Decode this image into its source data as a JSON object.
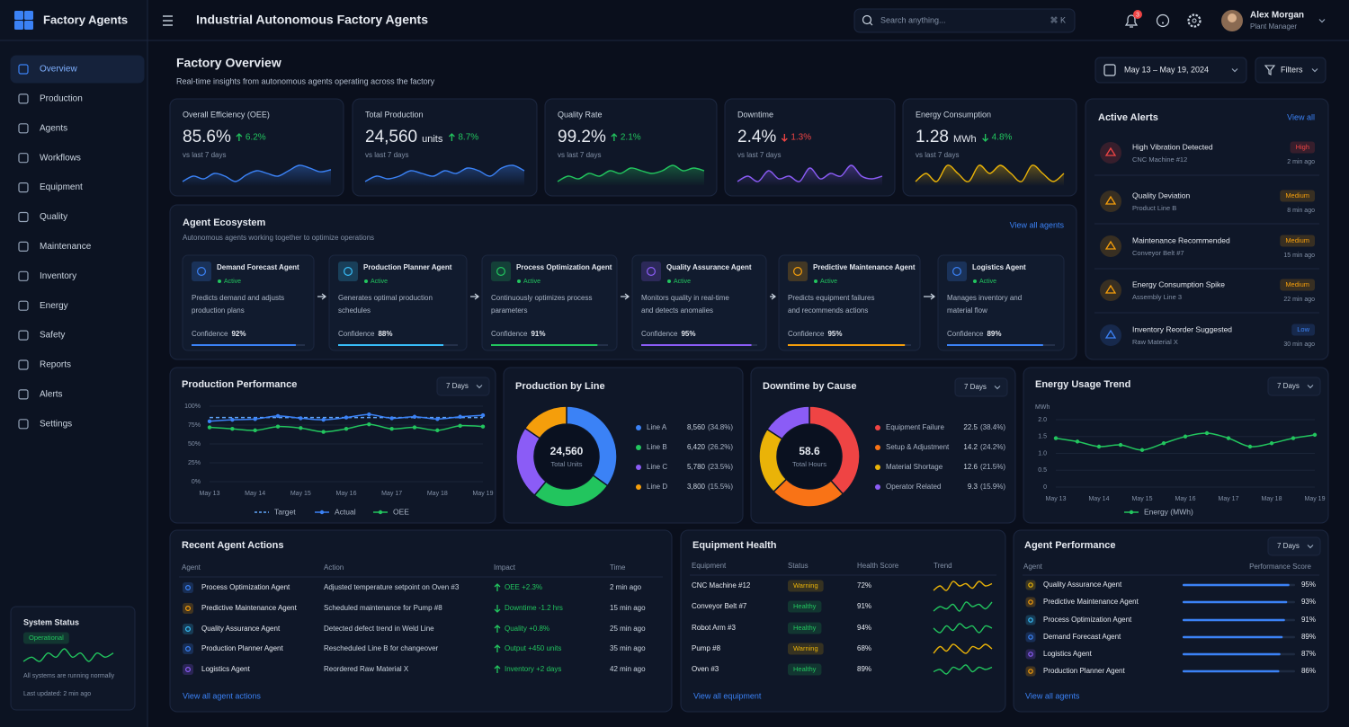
{
  "app": {
    "name": "Factory Agents"
  },
  "nav": [
    {
      "label": "Overview",
      "active": true
    },
    {
      "label": "Production"
    },
    {
      "label": "Agents"
    },
    {
      "label": "Workflows"
    },
    {
      "label": "Equipment"
    },
    {
      "label": "Quality"
    },
    {
      "label": "Maintenance"
    },
    {
      "label": "Inventory"
    },
    {
      "label": "Energy"
    },
    {
      "label": "Safety"
    },
    {
      "label": "Reports"
    },
    {
      "label": "Alerts"
    },
    {
      "label": "Settings"
    }
  ],
  "system_status": {
    "title": "System Status",
    "status": "Operational",
    "color": "#22c55e",
    "trend": [
      4,
      5,
      4,
      6,
      5,
      7,
      5,
      6,
      4,
      6,
      5,
      6
    ],
    "message": "All systems are running normally",
    "updated": "Last updated: 2 min ago"
  },
  "topbar": {
    "title": "Industrial Autonomous Factory Agents",
    "search_placeholder": "Search anything...",
    "shortcut": "⌘ K",
    "notifications": "3",
    "user": {
      "name": "Alex Morgan",
      "role": "Plant Manager"
    }
  },
  "header": {
    "title": "Factory Overview",
    "subtitle": "Real-time insights from autonomous agents operating across the factory",
    "date_range": "May 13 – May 19, 2024",
    "filters": "Filters"
  },
  "kpis": [
    {
      "label": "Overall Efficiency (OEE)",
      "value": "85.6%",
      "change": "6.2%",
      "direction": "up",
      "change_color": "#22c55e",
      "comparison": "vs last 7 days",
      "color": "#3b82f6",
      "trend": [
        5,
        6,
        5.5,
        6.5,
        6,
        5,
        6.2,
        7,
        6.5,
        6,
        7,
        8,
        7.5,
        6.8,
        7.2
      ]
    },
    {
      "label": "Total Production",
      "value": "24,560",
      "unit": "units",
      "change": "8.7%",
      "direction": "up",
      "change_color": "#22c55e",
      "comparison": "vs last 7 days",
      "color": "#3b82f6",
      "trend": [
        4,
        5,
        4.5,
        5,
        6,
        5.5,
        5,
        6,
        5.5,
        6.5,
        6,
        5,
        6.5,
        7,
        6
      ]
    },
    {
      "label": "Quality Rate",
      "value": "99.2%",
      "change": "2.1%",
      "direction": "up",
      "change_color": "#22c55e",
      "comparison": "vs last 7 days",
      "color": "#22c55e",
      "trend": [
        4,
        5,
        4.5,
        5.5,
        5,
        6,
        5.5,
        6.5,
        6,
        5.5,
        6,
        7,
        6,
        6.5,
        6
      ]
    },
    {
      "label": "Downtime",
      "value": "2.4%",
      "change": "1.3%",
      "direction": "down",
      "change_color": "#ef4444",
      "comparison": "vs last 7 days",
      "color": "#8b5cf6",
      "trend": [
        5,
        6,
        5,
        7,
        5.5,
        6,
        5,
        7.5,
        5.5,
        6.5,
        6,
        8,
        6,
        5.5,
        6
      ]
    },
    {
      "label": "Energy Consumption",
      "value": "1.28",
      "unit": "MWh",
      "change": "4.8%",
      "direction": "down",
      "change_color": "#22c55e",
      "comparison": "vs last 7 days",
      "color": "#eab308",
      "trend": [
        5,
        5.5,
        5,
        6,
        5.5,
        5,
        6,
        5.5,
        6,
        5.5,
        5,
        6,
        5.5,
        5,
        5.5
      ]
    }
  ],
  "alerts": {
    "title": "Active Alerts",
    "link": "View all",
    "items": [
      {
        "title": "High Vibration Detected",
        "subtitle": "CNC Machine #12",
        "severity": "High",
        "time": "2 min ago",
        "color": "#ef4444"
      },
      {
        "title": "Quality Deviation",
        "subtitle": "Product Line B",
        "severity": "Medium",
        "time": "8 min ago",
        "color": "#f59e0b"
      },
      {
        "title": "Maintenance Recommended",
        "subtitle": "Conveyor Belt #7",
        "severity": "Medium",
        "time": "15 min ago",
        "color": "#f59e0b"
      },
      {
        "title": "Energy Consumption Spike",
        "subtitle": "Assembly Line 3",
        "severity": "Medium",
        "time": "22 min ago",
        "color": "#f59e0b"
      },
      {
        "title": "Inventory Reorder Suggested",
        "subtitle": "Raw Material X",
        "severity": "Low",
        "time": "30 min ago",
        "color": "#3b82f6"
      }
    ]
  },
  "ecosystem": {
    "title": "Agent Ecosystem",
    "subtitle": "Autonomous agents working together to optimize operations",
    "link": "View all agents",
    "confidence_heading": "Confidence",
    "status_color": "#22c55e",
    "agents": [
      {
        "name": "Demand Forecast Agent",
        "status": "Active",
        "description": [
          "Predicts demand and adjusts",
          "production plans"
        ],
        "confidence": 92,
        "confidence_label": "92%",
        "color": "#3b82f6"
      },
      {
        "name": "Production Planner Agent",
        "status": "Active",
        "description": [
          "Generates optimal production",
          "schedules"
        ],
        "confidence": 88,
        "confidence_label": "88%",
        "color": "#38bdf8"
      },
      {
        "name": "Process Optimization Agent",
        "status": "Active",
        "description": [
          "Continuously optimizes process",
          "parameters"
        ],
        "confidence": 91,
        "confidence_label": "91%",
        "color": "#22c55e"
      },
      {
        "name": "Quality Assurance Agent",
        "status": "Active",
        "description": [
          "Monitors quality in real-time",
          "and detects anomalies"
        ],
        "confidence": 95,
        "confidence_label": "95%",
        "color": "#8b5cf6"
      },
      {
        "name": "Predictive Maintenance Agent",
        "status": "Active",
        "description": [
          "Predicts equipment failures",
          "and recommends actions"
        ],
        "confidence": 95,
        "confidence_label": "95%",
        "color": "#f59e0b"
      },
      {
        "name": "Logistics Agent",
        "status": "Active",
        "description": [
          "Manages inventory and",
          "material flow"
        ],
        "confidence": 89,
        "confidence_label": "89%",
        "color": "#3b82f6"
      }
    ]
  },
  "chart_data": [
    {
      "type": "line",
      "title": "Production Performance",
      "period": "7 Days",
      "categories": [
        "May 13",
        null,
        "May 14",
        null,
        "May 15",
        null,
        "May 16",
        null,
        "May 17",
        null,
        "May 18",
        null,
        "May 19"
      ],
      "ylim": [
        0,
        100
      ],
      "yticks": [
        {
          "value": 0,
          "label": "0%"
        },
        {
          "value": 25,
          "label": "25%"
        },
        {
          "value": 50,
          "label": "50%"
        },
        {
          "value": 75,
          "label": "75%"
        },
        {
          "value": 100,
          "label": "100%"
        }
      ],
      "grid": true,
      "series": [
        {
          "name": "Target",
          "color": "#60a5fa",
          "dash": true,
          "values": [
            85,
            85,
            85,
            85,
            85,
            85,
            85,
            85,
            85,
            85,
            85,
            85,
            85
          ]
        },
        {
          "name": "Actual",
          "color": "#3b82f6",
          "values": [
            80,
            82,
            83,
            87,
            84,
            82,
            85,
            89,
            84,
            86,
            83,
            86,
            88
          ]
        },
        {
          "name": "OEE",
          "color": "#22c55e",
          "values": [
            72,
            70,
            68,
            73,
            71,
            66,
            70,
            76,
            70,
            72,
            68,
            74,
            73
          ]
        }
      ]
    },
    {
      "type": "donut",
      "title": "Production by Line",
      "center_value": "24,560",
      "center_label": "Total Units",
      "categories": [
        "Line A",
        "Line B",
        "Line C",
        "Line D"
      ],
      "values": [
        8560,
        6420,
        5780,
        3800
      ],
      "value_labels": [
        "8,560",
        "6,420",
        "5,780",
        "3,800"
      ],
      "percent_labels": [
        "(34.8%)",
        "(26.2%)",
        "(23.5%)",
        "(15.5%)"
      ],
      "colors": [
        "#3b82f6",
        "#22c55e",
        "#8b5cf6",
        "#f59e0b"
      ]
    },
    {
      "type": "donut",
      "title": "Downtime by Cause",
      "period": "7 Days",
      "center_value": "58.6",
      "center_label": "Total Hours",
      "categories": [
        "Equipment Failure",
        "Setup & Adjustment",
        "Material Shortage",
        "Operator Related"
      ],
      "values": [
        22.5,
        14.2,
        12.6,
        9.3
      ],
      "percent_labels": [
        "(38.4%)",
        "(24.2%)",
        "(21.5%)",
        "(15.9%)"
      ],
      "colors": [
        "#ef4444",
        "#f97316",
        "#eab308",
        "#8b5cf6"
      ]
    },
    {
      "type": "line",
      "title": "Energy Usage Trend",
      "period": "7 Days",
      "y_label": "MWh",
      "categories": [
        "May 13",
        null,
        "May 14",
        null,
        "May 15",
        null,
        "May 16",
        null,
        "May 17",
        null,
        "May 18",
        null,
        "May 19"
      ],
      "ylim": [
        0,
        2
      ],
      "yticks": [
        0,
        0.5,
        {
          "value": 1,
          "label": "1.0"
        },
        1.5,
        {
          "value": 2,
          "label": "2.0"
        }
      ],
      "grid": true,
      "series": [
        {
          "name": "Energy (MWh)",
          "color": "#22c55e",
          "values": [
            1.45,
            1.35,
            1.2,
            1.25,
            1.1,
            1.3,
            1.5,
            1.6,
            1.45,
            1.2,
            1.3,
            1.45,
            1.55
          ]
        }
      ]
    }
  ],
  "recent_actions": {
    "title": "Recent Agent Actions",
    "columns": [
      "Agent",
      "Action",
      "Impact",
      "Time"
    ],
    "impact_color": "#22c55e",
    "link": "View all agent actions",
    "rows": [
      {
        "agent": "Process Optimization Agent",
        "action": "Adjusted temperature setpoint on Oven #3",
        "impact": "OEE +2.3%",
        "direction": "up",
        "time": "2 min ago",
        "color": "#3b82f6"
      },
      {
        "agent": "Predictive Maintenance Agent",
        "action": "Scheduled maintenance for Pump #8",
        "impact": "Downtime -1.2 hrs",
        "direction": "down",
        "time": "15 min ago",
        "color": "#f59e0b"
      },
      {
        "agent": "Quality Assurance Agent",
        "action": "Detected defect trend in Weld Line",
        "impact": "Quality +0.8%",
        "direction": "up",
        "time": "25 min ago",
        "color": "#38bdf8"
      },
      {
        "agent": "Production Planner Agent",
        "action": "Rescheduled Line B for changeover",
        "impact": "Output +450 units",
        "direction": "up",
        "time": "35 min ago",
        "color": "#3b82f6"
      },
      {
        "agent": "Logistics Agent",
        "action": "Reordered Raw Material X",
        "impact": "Inventory +2 days",
        "direction": "up",
        "time": "42 min ago",
        "color": "#8b5cf6"
      }
    ]
  },
  "equipment_health": {
    "title": "Equipment Health",
    "columns": [
      "Equipment",
      "Status",
      "Health Score",
      "Trend"
    ],
    "link": "View all equipment",
    "rows": [
      {
        "equipment": "CNC Machine #12",
        "status": "Warning",
        "score": "72%",
        "color": "#eab308",
        "trend": [
          5,
          6,
          5,
          7,
          6,
          6.5,
          5.5,
          7,
          6,
          6.5
        ]
      },
      {
        "equipment": "Conveyor Belt #7",
        "status": "Healthy",
        "score": "91%",
        "color": "#22c55e",
        "trend": [
          5,
          6,
          5.5,
          6.5,
          5,
          7,
          6,
          6.5,
          5.5,
          7
        ]
      },
      {
        "equipment": "Robot Arm #3",
        "status": "Healthy",
        "score": "94%",
        "color": "#22c55e",
        "trend": [
          6,
          5,
          6.5,
          5.5,
          7,
          6,
          6.5,
          5,
          6.5,
          6
        ]
      },
      {
        "equipment": "Pump #8",
        "status": "Warning",
        "score": "68%",
        "color": "#eab308",
        "trend": [
          5,
          6.5,
          5.5,
          7,
          6,
          5,
          6.5,
          6,
          7,
          6
        ]
      },
      {
        "equipment": "Oven #3",
        "status": "Healthy",
        "score": "89%",
        "color": "#22c55e",
        "trend": [
          5.5,
          6,
          5,
          6.5,
          6,
          7,
          5.5,
          6.5,
          6,
          6.5
        ]
      }
    ]
  },
  "agent_performance": {
    "title": "Agent Performance",
    "period": "7 Days",
    "columns": [
      "Agent",
      "Performance Score"
    ],
    "bar_color": "#3b82f6",
    "link": "View all agents",
    "rows": [
      {
        "agent": "Quality Assurance Agent",
        "score": 95,
        "score_label": "95%",
        "color": "#eab308"
      },
      {
        "agent": "Predictive Maintenance Agent",
        "score": 93,
        "score_label": "93%",
        "color": "#f59e0b"
      },
      {
        "agent": "Process Optimization Agent",
        "score": 91,
        "score_label": "91%",
        "color": "#38bdf8"
      },
      {
        "agent": "Demand Forecast Agent",
        "score": 89,
        "score_label": "89%",
        "color": "#3b82f6"
      },
      {
        "agent": "Logistics Agent",
        "score": 87,
        "score_label": "87%",
        "color": "#8b5cf6"
      },
      {
        "agent": "Production Planner Agent",
        "score": 86,
        "score_label": "86%",
        "color": "#f59e0b"
      }
    ]
  }
}
